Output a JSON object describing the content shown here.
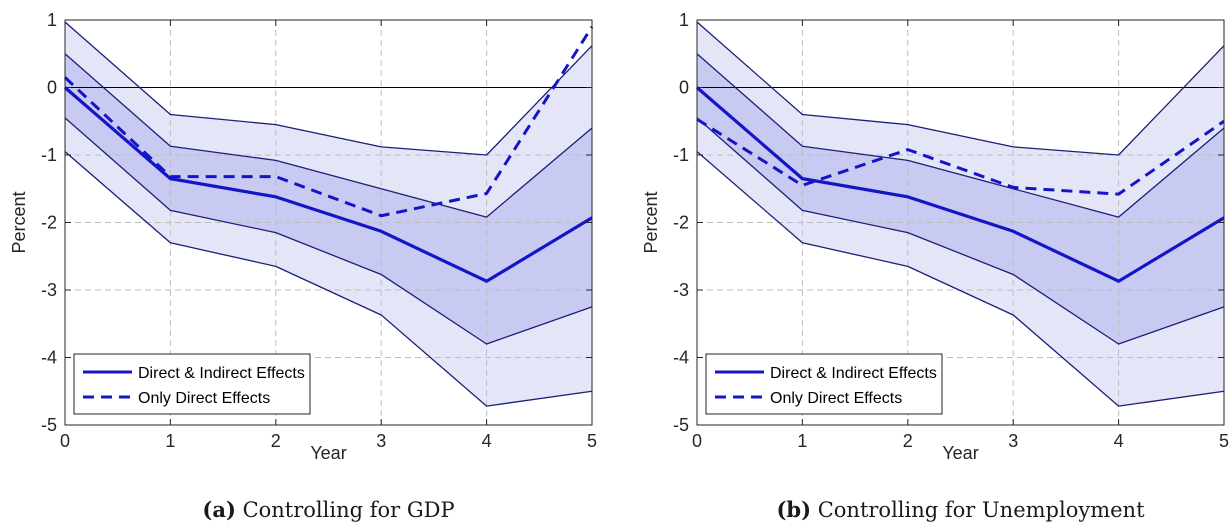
{
  "figure": {
    "colors": {
      "band_outer": "#e4e6f8",
      "band_inner": "#c8caf1",
      "band_edge": "#1c1f7a",
      "main_line": "#1515c8",
      "grid": "#bdbdbd",
      "zero_line": "#000000"
    }
  },
  "chart_data": [
    {
      "type": "line",
      "caption_tag": "(a)",
      "caption_text": "Controlling for GDP",
      "xlabel": "Year",
      "ylabel": "Percent",
      "xlim": [
        0,
        5
      ],
      "ylim": [
        -5,
        1
      ],
      "grid": true,
      "legend_placement": "bottom-left",
      "x": [
        0,
        1,
        2,
        3,
        4,
        5
      ],
      "x_ticks": [
        "0",
        "1",
        "2",
        "3",
        "4",
        "5"
      ],
      "y_ticks": [
        "1",
        "0",
        "-1",
        "-2",
        "-3",
        "-4",
        "-5"
      ],
      "series": [
        {
          "name": "Direct & Indirect Effects",
          "style": "solid",
          "values": [
            0.0,
            -1.35,
            -1.62,
            -2.13,
            -2.87,
            -1.93
          ]
        },
        {
          "name": "Only Direct Effects",
          "style": "dashed",
          "values": [
            0.15,
            -1.32,
            -1.32,
            -1.9,
            -1.57,
            0.9
          ]
        }
      ],
      "bands": {
        "outer_upper": [
          0.97,
          -0.4,
          -0.55,
          -0.88,
          -1.0,
          0.62
        ],
        "outer_lower": [
          -0.95,
          -2.3,
          -2.65,
          -3.37,
          -4.72,
          -4.5
        ],
        "inner_upper": [
          0.5,
          -0.87,
          -1.08,
          -1.5,
          -1.92,
          -0.6
        ],
        "inner_lower": [
          -0.45,
          -1.82,
          -2.15,
          -2.77,
          -3.8,
          -3.25
        ]
      }
    },
    {
      "type": "line",
      "caption_tag": "(b)",
      "caption_text": "Controlling for Unemployment",
      "xlabel": "Year",
      "ylabel": "Percent",
      "xlim": [
        0,
        5
      ],
      "ylim": [
        -5,
        1
      ],
      "grid": true,
      "legend_placement": "bottom-left",
      "x": [
        0,
        1,
        2,
        3,
        4,
        5
      ],
      "x_ticks": [
        "0",
        "1",
        "2",
        "3",
        "4",
        "5"
      ],
      "y_ticks": [
        "1",
        "0",
        "-1",
        "-2",
        "-3",
        "-4",
        "-5"
      ],
      "series": [
        {
          "name": "Direct & Indirect Effects",
          "style": "solid",
          "values": [
            0.0,
            -1.35,
            -1.62,
            -2.13,
            -2.87,
            -1.93
          ]
        },
        {
          "name": "Only Direct Effects",
          "style": "dashed",
          "values": [
            -0.47,
            -1.45,
            -0.92,
            -1.48,
            -1.58,
            -0.5
          ]
        }
      ],
      "bands": {
        "outer_upper": [
          0.97,
          -0.4,
          -0.55,
          -0.88,
          -1.0,
          0.62
        ],
        "outer_lower": [
          -0.95,
          -2.3,
          -2.65,
          -3.37,
          -4.72,
          -4.5
        ],
        "inner_upper": [
          0.5,
          -0.87,
          -1.08,
          -1.5,
          -1.92,
          -0.6
        ],
        "inner_lower": [
          -0.45,
          -1.82,
          -2.15,
          -2.77,
          -3.8,
          -3.25
        ]
      }
    }
  ]
}
